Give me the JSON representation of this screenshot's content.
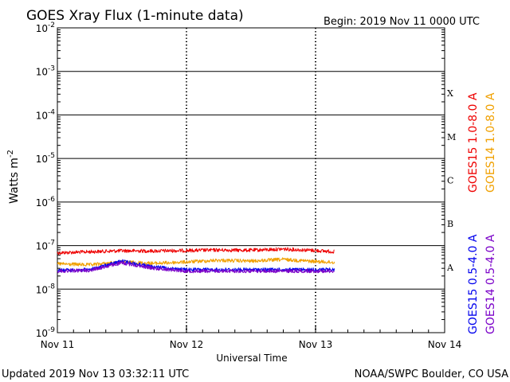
{
  "chart_data": {
    "type": "line",
    "title": "GOES Xray Flux (1-minute data)",
    "begin_label": "Begin:  2019 Nov 11 0000 UTC",
    "xlabel": "Universal Time",
    "ylabel": "Watts m",
    "ylabel_exponent": "-2",
    "y_scale": "log",
    "ylim": [
      1e-09,
      0.01
    ],
    "y_tick_labels": [
      {
        "base": "10",
        "exp": "-9",
        "value": 1e-09
      },
      {
        "base": "10",
        "exp": "-8",
        "value": 1e-08
      },
      {
        "base": "10",
        "exp": "-7",
        "value": 1e-07
      },
      {
        "base": "10",
        "exp": "-6",
        "value": 1e-06
      },
      {
        "base": "10",
        "exp": "-5",
        "value": 1e-05
      },
      {
        "base": "10",
        "exp": "-4",
        "value": 0.0001
      },
      {
        "base": "10",
        "exp": "-3",
        "value": 0.001
      },
      {
        "base": "10",
        "exp": "-2",
        "value": 0.01
      }
    ],
    "x_range": [
      "2019-11-11T00:00",
      "2019-11-14T00:00"
    ],
    "x_tick_labels": [
      {
        "label": "Nov 11",
        "value": "2019-11-11T00:00"
      },
      {
        "label": "Nov 12",
        "value": "2019-11-12T00:00"
      },
      {
        "label": "Nov 13",
        "value": "2019-11-13T00:00"
      },
      {
        "label": "Nov 14",
        "value": "2019-11-14T00:00"
      }
    ],
    "flare_classes": [
      {
        "label": "X",
        "min": 0.0001,
        "max": 0.001
      },
      {
        "label": "M",
        "min": 1e-05,
        "max": 0.0001
      },
      {
        "label": "C",
        "min": 1e-06,
        "max": 1e-05
      },
      {
        "label": "B",
        "min": 1e-07,
        "max": 1e-06
      },
      {
        "label": "A",
        "min": 1e-08,
        "max": 1e-07
      }
    ],
    "gridlines_y": [
      1e-08,
      1e-07,
      1e-06,
      1e-05,
      0.0001,
      0.001
    ],
    "legend_placement": "right",
    "legend_groups": [
      {
        "entries": [
          {
            "label": "GOES15 1.0-8.0 A",
            "color": "#ee0000"
          },
          {
            "label": "GOES14 1.0-8.0 A",
            "color": "#f0a000"
          }
        ]
      },
      {
        "entries": [
          {
            "label": "GOES15 0.5-4.0 A",
            "color": "#0000ee"
          },
          {
            "label": "GOES14 0.5-4.0 A",
            "color": "#7a00c8"
          }
        ]
      }
    ],
    "series": [
      {
        "name": "GOES15 1.0-8.0 A",
        "color": "#ee0000",
        "x": [
          "2019-11-11T00:00",
          "2019-11-11T06:00",
          "2019-11-11T12:00",
          "2019-11-11T18:00",
          "2019-11-12T00:00",
          "2019-11-12T06:00",
          "2019-11-12T12:00",
          "2019-11-12T18:00",
          "2019-11-13T00:00",
          "2019-11-13T03:30"
        ],
        "y": [
          6.8e-08,
          7.2e-08,
          7.6e-08,
          7.5e-08,
          7.7e-08,
          7.9e-08,
          7.8e-08,
          8.3e-08,
          7.7e-08,
          7.2e-08
        ]
      },
      {
        "name": "GOES14 1.0-8.0 A",
        "color": "#f0a000",
        "x": [
          "2019-11-11T00:00",
          "2019-11-11T06:00",
          "2019-11-11T12:00",
          "2019-11-11T18:00",
          "2019-11-12T00:00",
          "2019-11-12T06:00",
          "2019-11-12T12:00",
          "2019-11-12T18:00",
          "2019-11-13T00:00",
          "2019-11-13T03:30"
        ],
        "y": [
          3.8e-08,
          3.6e-08,
          4.2e-08,
          3.9e-08,
          4.2e-08,
          4.6e-08,
          4.4e-08,
          4.8e-08,
          4.3e-08,
          4.1e-08
        ]
      },
      {
        "name": "GOES15 0.5-4.0 A",
        "color": "#0000ee",
        "x": [
          "2019-11-11T00:00",
          "2019-11-11T06:00",
          "2019-11-11T12:00",
          "2019-11-11T18:00",
          "2019-11-12T00:00",
          "2019-11-12T06:00",
          "2019-11-12T12:00",
          "2019-11-12T18:00",
          "2019-11-13T00:00",
          "2019-11-13T03:30"
        ],
        "y": [
          2.7e-08,
          2.8e-08,
          4.4e-08,
          3.2e-08,
          2.8e-08,
          2.8e-08,
          2.8e-08,
          2.8e-08,
          2.8e-08,
          2.8e-08
        ]
      },
      {
        "name": "GOES14 0.5-4.0 A",
        "color": "#7a00c8",
        "x": [
          "2019-11-11T00:00",
          "2019-11-11T06:00",
          "2019-11-11T12:00",
          "2019-11-11T18:00",
          "2019-11-12T00:00",
          "2019-11-12T06:00",
          "2019-11-12T12:00",
          "2019-11-12T18:00",
          "2019-11-13T00:00",
          "2019-11-13T03:30"
        ],
        "y": [
          2.6e-08,
          2.7e-08,
          4e-08,
          3e-08,
          2.6e-08,
          2.6e-08,
          2.6e-08,
          2.6e-08,
          2.6e-08,
          2.6e-08
        ]
      }
    ]
  },
  "footer": {
    "updated": "Updated 2019 Nov 13 03:32:11 UTC",
    "credit": "NOAA/SWPC Boulder, CO USA"
  }
}
